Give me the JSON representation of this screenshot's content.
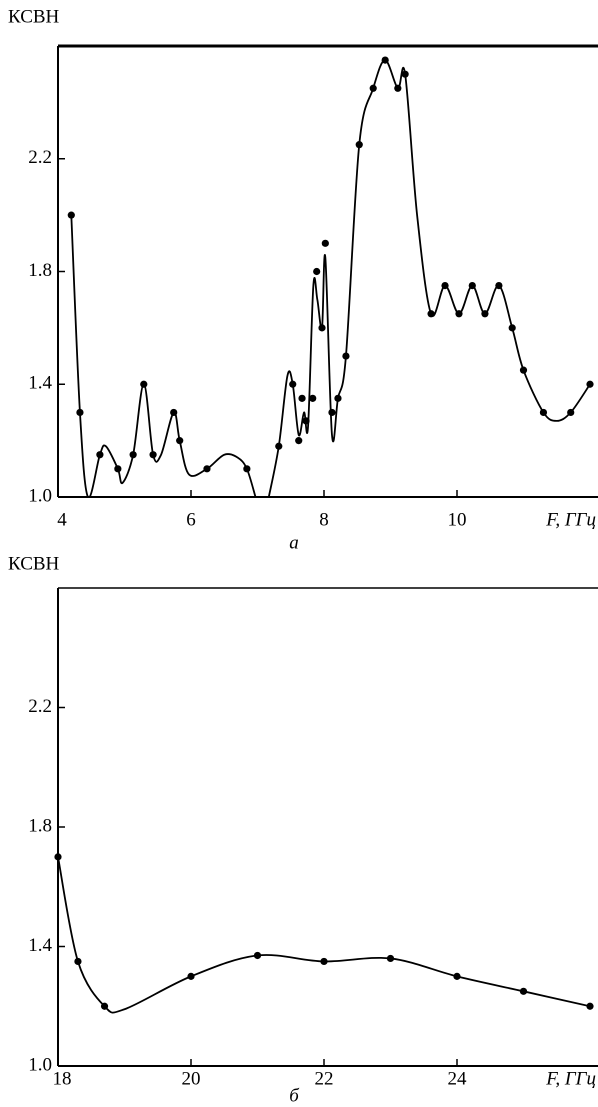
{
  "chart_data": [
    {
      "type": "line",
      "ylabel": "КСВН",
      "xlabel": "F, ГГц",
      "caption": "а",
      "xlim": [
        4,
        12
      ],
      "xticks": [
        4,
        6,
        8,
        10
      ],
      "ylim": [
        1.0,
        2.6
      ],
      "yticks": [
        {
          "value": 1.0,
          "label": "1.0"
        },
        1.4,
        1.8,
        2.2
      ],
      "series": [
        {
          "style": "markers",
          "color": "#000000",
          "x": [
            4.2,
            4.33,
            4.63,
            4.9,
            5.13,
            5.29,
            5.43,
            5.74,
            5.83,
            6.24,
            6.84,
            7.32,
            7.53,
            7.62,
            7.67,
            7.73,
            7.83,
            7.89,
            7.97,
            8.02,
            8.12,
            8.21,
            8.33,
            8.53,
            8.74,
            8.92,
            9.11,
            9.22,
            9.61,
            9.82,
            10.03,
            10.23,
            10.42,
            10.63,
            10.83,
            11.0,
            11.3,
            11.71,
            12.0
          ],
          "values": [
            2.0,
            1.3,
            1.15,
            1.1,
            1.15,
            1.4,
            1.15,
            1.3,
            1.2,
            1.1,
            1.1,
            1.18,
            1.4,
            1.2,
            1.35,
            1.27,
            1.35,
            1.8,
            1.6,
            1.9,
            1.3,
            1.35,
            1.5,
            2.25,
            2.45,
            2.55,
            2.45,
            2.5,
            1.65,
            1.75,
            1.65,
            1.75,
            1.65,
            1.75,
            1.6,
            1.45,
            1.3,
            1.3,
            1.4
          ]
        },
        {
          "style": "line",
          "color": "#000000",
          "x": [
            4.2,
            4.33,
            4.45,
            4.63,
            4.72,
            4.9,
            4.97,
            5.13,
            5.29,
            5.43,
            5.55,
            5.74,
            5.83,
            5.97,
            6.24,
            6.5,
            6.7,
            6.84,
            6.97,
            7.05,
            7.17,
            7.32,
            7.45,
            7.53,
            7.62,
            7.7,
            7.76,
            7.84,
            7.9,
            7.97,
            8.02,
            8.12,
            8.21,
            8.33,
            8.53,
            8.74,
            8.92,
            9.11,
            9.22,
            9.4,
            9.61,
            9.82,
            10.03,
            10.23,
            10.42,
            10.63,
            10.83,
            11.0,
            11.3,
            11.5,
            11.71,
            12.0
          ],
          "values": [
            2.0,
            1.3,
            1.0,
            1.15,
            1.18,
            1.1,
            1.05,
            1.15,
            1.4,
            1.15,
            1.15,
            1.3,
            1.2,
            1.08,
            1.1,
            1.15,
            1.14,
            1.1,
            1.0,
            null,
            1.0,
            1.18,
            1.43,
            1.4,
            1.22,
            1.3,
            1.25,
            1.75,
            1.7,
            1.6,
            1.85,
            1.22,
            1.35,
            1.5,
            2.25,
            2.45,
            2.55,
            2.45,
            2.5,
            2.0,
            1.65,
            1.75,
            1.65,
            1.75,
            1.65,
            1.75,
            1.6,
            1.45,
            1.3,
            1.27,
            1.3,
            1.4
          ]
        }
      ]
    },
    {
      "type": "line",
      "ylabel": "КСВН",
      "xlabel": "F, ГГц",
      "caption": "б",
      "xlim": [
        18,
        26
      ],
      "xticks": [
        18,
        20,
        22,
        24
      ],
      "ylim": [
        1.0,
        2.6
      ],
      "yticks": [
        {
          "value": 1.0,
          "label": "1.0"
        },
        1.4,
        1.8,
        2.2
      ],
      "series": [
        {
          "style": "markers",
          "color": "#000000",
          "x": [
            18,
            18.3,
            18.7,
            20,
            21,
            22,
            23,
            24,
            25,
            26
          ],
          "values": [
            1.7,
            1.35,
            1.2,
            1.3,
            1.37,
            1.35,
            1.36,
            1.3,
            1.25,
            1.2
          ]
        },
        {
          "style": "line",
          "color": "#000000",
          "x": [
            18,
            18.3,
            18.7,
            19,
            20,
            21,
            22,
            23,
            24,
            25,
            26
          ],
          "values": [
            1.7,
            1.35,
            1.2,
            1.19,
            1.3,
            1.37,
            1.35,
            1.36,
            1.3,
            1.25,
            1.2
          ]
        }
      ]
    }
  ]
}
